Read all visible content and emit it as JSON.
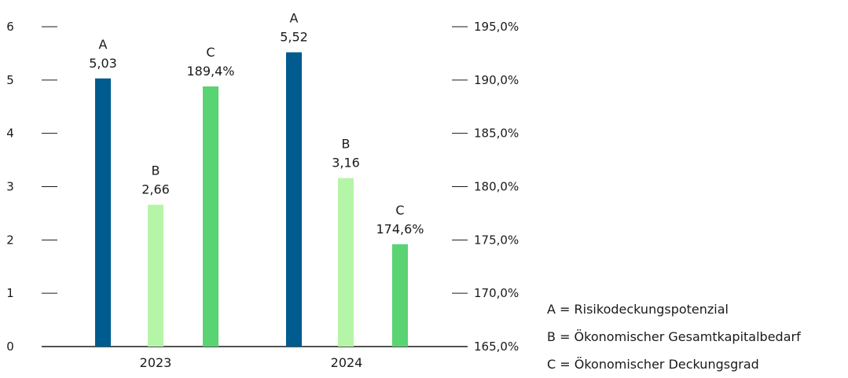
{
  "chart_data": {
    "type": "bar",
    "categories": [
      "2023",
      "2024"
    ],
    "series": [
      {
        "letter": "A",
        "axis": "left",
        "color": "#005b8e",
        "values": [
          5.03,
          5.52
        ],
        "value_labels": [
          "5,03",
          "5,52"
        ]
      },
      {
        "letter": "B",
        "axis": "left",
        "color": "#b5f5a8",
        "values": [
          2.66,
          3.16
        ],
        "value_labels": [
          "2,66",
          "3,16"
        ]
      },
      {
        "letter": "C",
        "axis": "right",
        "color": "#5ad373",
        "values": [
          189.4,
          174.6
        ],
        "value_labels": [
          "189,4%",
          "174,6%"
        ]
      }
    ],
    "left_axis": {
      "min": 0,
      "max": 6,
      "ticks": [
        0,
        1,
        2,
        3,
        4,
        5,
        6
      ],
      "tick_labels": [
        "0",
        "1",
        "2",
        "3",
        "4",
        "5",
        "6"
      ]
    },
    "right_axis": {
      "min": 165,
      "max": 195,
      "ticks": [
        165,
        170,
        175,
        180,
        185,
        190,
        195
      ],
      "tick_labels": [
        "165,0%",
        "170,0%",
        "175,0%",
        "180,0%",
        "185,0%",
        "190,0%",
        "195,0%"
      ]
    },
    "legend": [
      {
        "text": "A = Risikodeckungspotenzial"
      },
      {
        "text": "B = Ökonomischer Gesamtkapitalbedarf"
      },
      {
        "text": "C = Ökonomischer Deckungsgrad"
      }
    ],
    "legend_position": "bottom-right",
    "grid": false
  }
}
